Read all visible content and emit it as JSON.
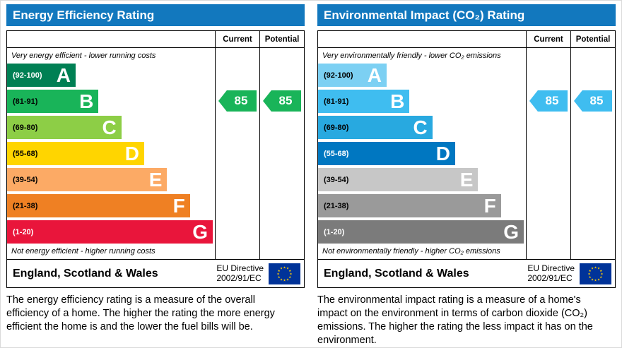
{
  "header_color": "#1278be",
  "eu_flag": {
    "field": "#003399",
    "stars": "#ffcc00"
  },
  "panels": [
    {
      "title": "Energy Efficiency Rating",
      "col_current": "Current",
      "col_potential": "Potential",
      "top_note": "Very energy efficient - lower running costs",
      "bottom_note": "Not energy efficient - higher running costs",
      "bands": [
        {
          "range": "(92-100)",
          "letter": "A",
          "color": "#008054",
          "range_color": "#ffffff",
          "width_pct": 33
        },
        {
          "range": "(81-91)",
          "letter": "B",
          "color": "#19b459",
          "range_color": "#000000",
          "width_pct": 44
        },
        {
          "range": "(69-80)",
          "letter": "C",
          "color": "#8dce46",
          "range_color": "#000000",
          "width_pct": 55
        },
        {
          "range": "(55-68)",
          "letter": "D",
          "color": "#ffd500",
          "range_color": "#000000",
          "width_pct": 66
        },
        {
          "range": "(39-54)",
          "letter": "E",
          "color": "#fcaa65",
          "range_color": "#000000",
          "width_pct": 77
        },
        {
          "range": "(21-38)",
          "letter": "F",
          "color": "#ef8023",
          "range_color": "#000000",
          "width_pct": 88
        },
        {
          "range": "(1-20)",
          "letter": "G",
          "color": "#e9153b",
          "range_color": "#ffffff",
          "width_pct": 99
        }
      ],
      "current_value": "85",
      "potential_value": "85",
      "arrow_color": "#19b459",
      "footer_region": "England, Scotland & Wales",
      "directive_line1": "EU Directive",
      "directive_line2": "2002/91/EC",
      "description": "The energy efficiency rating is a measure of the overall efficiency of a home. The higher the rating the more energy efficient the home is and the lower the fuel bills will be."
    },
    {
      "title": "Environmental Impact (CO₂) Rating",
      "col_current": "Current",
      "col_potential": "Potential",
      "top_note": "Very environmentally friendly - lower CO₂ emissions",
      "bottom_note": "Not environmentally friendly - higher CO₂ emissions",
      "bands": [
        {
          "range": "(92-100)",
          "letter": "A",
          "color": "#7cd0f3",
          "range_color": "#000000",
          "width_pct": 33
        },
        {
          "range": "(81-91)",
          "letter": "B",
          "color": "#3fbdf0",
          "range_color": "#000000",
          "width_pct": 44
        },
        {
          "range": "(69-80)",
          "letter": "C",
          "color": "#28a9e0",
          "range_color": "#000000",
          "width_pct": 55
        },
        {
          "range": "(55-68)",
          "letter": "D",
          "color": "#0077c1",
          "range_color": "#ffffff",
          "width_pct": 66
        },
        {
          "range": "(39-54)",
          "letter": "E",
          "color": "#c7c7c7",
          "range_color": "#000000",
          "width_pct": 77
        },
        {
          "range": "(21-38)",
          "letter": "F",
          "color": "#9a9a9a",
          "range_color": "#000000",
          "width_pct": 88
        },
        {
          "range": "(1-20)",
          "letter": "G",
          "color": "#7b7b7b",
          "range_color": "#ffffff",
          "width_pct": 99
        }
      ],
      "current_value": "85",
      "potential_value": "85",
      "arrow_color": "#3fbdf0",
      "footer_region": "England, Scotland & Wales",
      "directive_line1": "EU Directive",
      "directive_line2": "2002/91/EC",
      "description": "The environmental impact rating is a measure of a home's impact on the environment in terms of carbon dioxide (CO₂) emissions. The higher the rating the less impact it has on the environment."
    }
  ],
  "chart_data": [
    {
      "type": "bar",
      "orientation": "horizontal",
      "title": "Energy Efficiency Rating",
      "categories": [
        "A",
        "B",
        "C",
        "D",
        "E",
        "F",
        "G"
      ],
      "band_ranges": [
        "92-100",
        "81-91",
        "69-80",
        "55-68",
        "39-54",
        "21-38",
        "1-20"
      ],
      "values": [
        33,
        44,
        55,
        66,
        77,
        88,
        99
      ],
      "values_note": "relative bar lengths as % of chart width; bands are rating ranges",
      "current_rating": 85,
      "potential_rating": 85,
      "current_band": "B",
      "potential_band": "B",
      "legend": [
        "Current",
        "Potential"
      ],
      "xlim": [
        0,
        100
      ],
      "region": "England, Scotland & Wales",
      "directive": "EU Directive 2002/91/EC"
    },
    {
      "type": "bar",
      "orientation": "horizontal",
      "title": "Environmental Impact (CO₂) Rating",
      "categories": [
        "A",
        "B",
        "C",
        "D",
        "E",
        "F",
        "G"
      ],
      "band_ranges": [
        "92-100",
        "81-91",
        "69-80",
        "55-68",
        "39-54",
        "21-38",
        "1-20"
      ],
      "values": [
        33,
        44,
        55,
        66,
        77,
        88,
        99
      ],
      "values_note": "relative bar lengths as % of chart width; bands are rating ranges",
      "current_rating": 85,
      "potential_rating": 85,
      "current_band": "B",
      "potential_band": "B",
      "legend": [
        "Current",
        "Potential"
      ],
      "xlim": [
        0,
        100
      ],
      "region": "England, Scotland & Wales",
      "directive": "EU Directive 2002/91/EC"
    }
  ]
}
